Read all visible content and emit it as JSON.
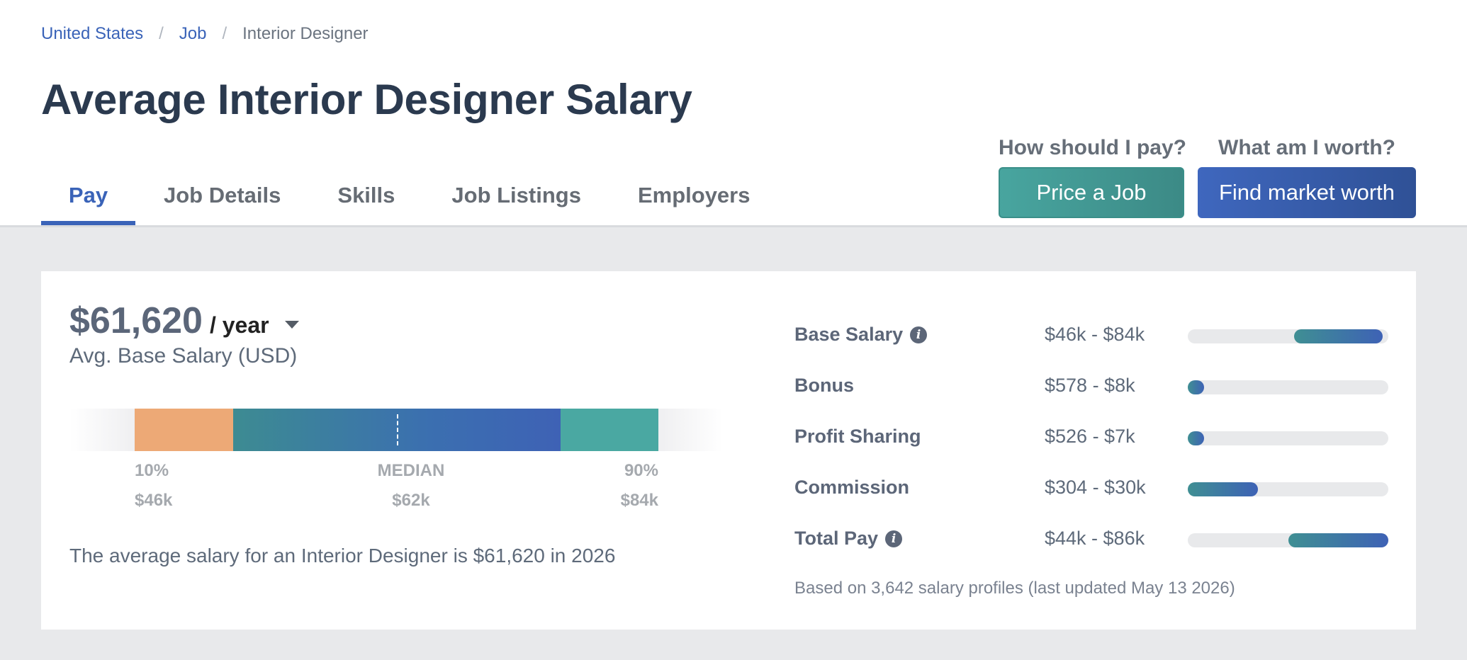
{
  "breadcrumb": {
    "items": [
      "United States",
      "Job"
    ],
    "current": "Interior Designer",
    "separator": "/"
  },
  "page": {
    "title": "Average Interior Designer Salary"
  },
  "tabs": [
    {
      "label": "Pay",
      "active": true
    },
    {
      "label": "Job Details",
      "active": false
    },
    {
      "label": "Skills",
      "active": false
    },
    {
      "label": "Job Listings",
      "active": false
    },
    {
      "label": "Employers",
      "active": false
    }
  ],
  "cta": {
    "price": {
      "question": "How should I pay?",
      "button": "Price a Job",
      "color": "#48a59f"
    },
    "worth": {
      "question": "What am I worth?",
      "button": "Find market worth",
      "color": "#3f67be"
    }
  },
  "summary": {
    "amount": "$61,620",
    "period": "/ year",
    "subtitle": "Avg. Base Salary (USD)",
    "description": "The average salary for an Interior Designer is $61,620 in 2026"
  },
  "distribution": {
    "p10": {
      "label": "10%",
      "value": "$46k"
    },
    "median": {
      "label": "MEDIAN",
      "value": "$62k"
    },
    "p90": {
      "label": "90%",
      "value": "$84k"
    },
    "colors": {
      "low": "#eda976",
      "mid": "#3e62b5",
      "high": "#4aa8a2"
    }
  },
  "compensation": [
    {
      "label": "Base Salary",
      "info": true,
      "range": "$46k - $84k",
      "fill_start": 0.53,
      "fill_end": 0.97
    },
    {
      "label": "Bonus",
      "info": false,
      "range": "$578 - $8k",
      "fill_start": 0.0,
      "fill_end": 0.08
    },
    {
      "label": "Profit Sharing",
      "info": false,
      "range": "$526 - $7k",
      "fill_start": 0.0,
      "fill_end": 0.08
    },
    {
      "label": "Commission",
      "info": false,
      "range": "$304 - $30k",
      "fill_start": 0.0,
      "fill_end": 0.35
    },
    {
      "label": "Total Pay",
      "info": true,
      "range": "$44k - $86k",
      "fill_start": 0.5,
      "fill_end": 1.0
    }
  ],
  "footnote": "Based on 3,642 salary profiles (last updated May 13 2026)",
  "icons": {
    "info": "info-icon",
    "dropdown": "caret-down-icon"
  }
}
